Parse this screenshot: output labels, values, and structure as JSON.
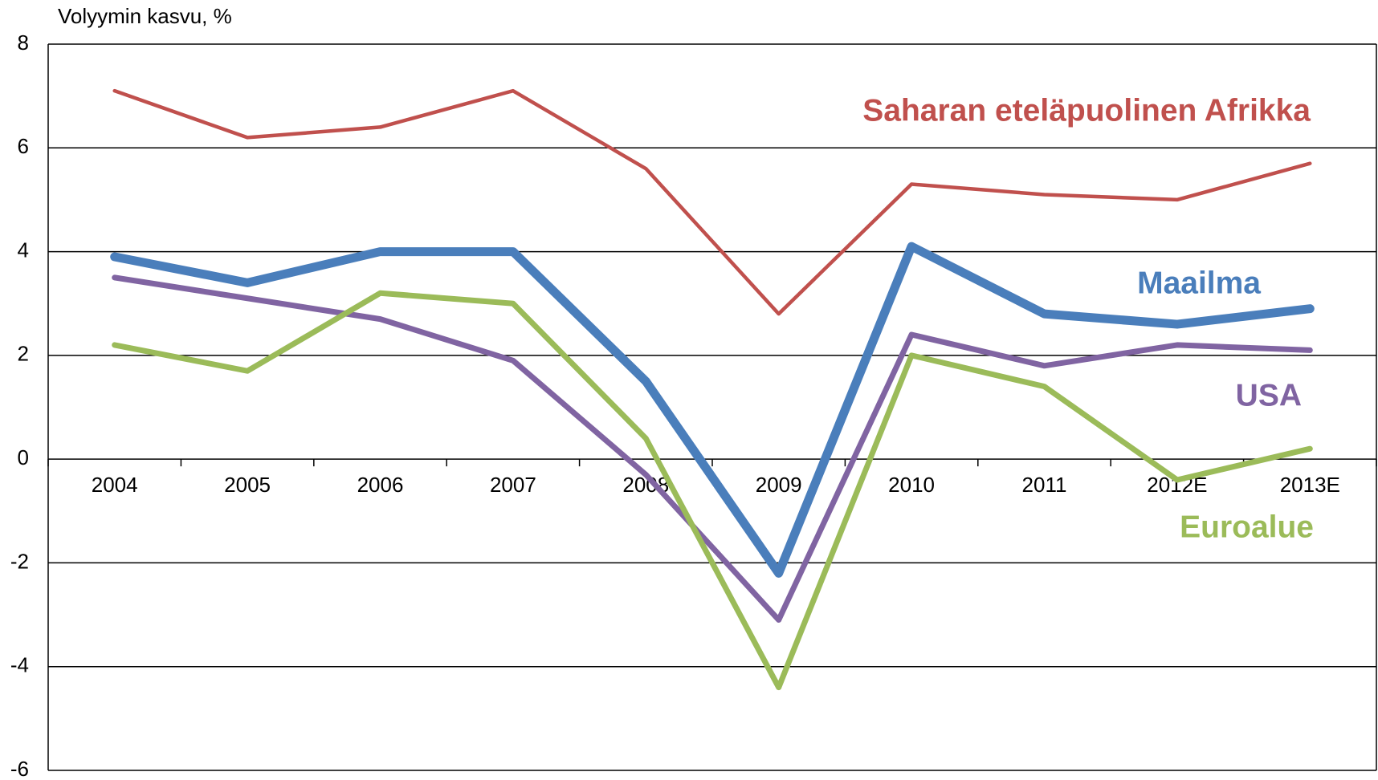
{
  "chart_data": {
    "type": "line",
    "y_axis_label": "Volyymin kasvu, %",
    "categories": [
      "2004",
      "2005",
      "2006",
      "2007",
      "2008",
      "2009",
      "2010",
      "2011",
      "2012E",
      "2013E"
    ],
    "series": [
      {
        "name": "Saharan eteläpuolinen Afrikka",
        "color": "#c0504d",
        "values": [
          7.1,
          6.2,
          6.4,
          7.1,
          5.6,
          2.8,
          5.3,
          5.1,
          5.0,
          5.7
        ]
      },
      {
        "name": "Maailma",
        "color": "#4a7ebb",
        "values": [
          3.9,
          3.4,
          4.0,
          4.0,
          1.5,
          -2.2,
          4.1,
          2.8,
          2.6,
          2.9
        ]
      },
      {
        "name": "USA",
        "color": "#8064a2",
        "values": [
          3.5,
          3.1,
          2.7,
          1.9,
          -0.3,
          -3.1,
          2.4,
          1.8,
          2.2,
          2.1
        ]
      },
      {
        "name": "Euroalue",
        "color": "#9bbb59",
        "values": [
          2.2,
          1.7,
          3.2,
          3.0,
          0.4,
          -4.4,
          2.0,
          1.4,
          -0.4,
          0.2
        ]
      }
    ],
    "ylim": [
      -6,
      8
    ],
    "yticks": [
      -6,
      -4,
      -2,
      0,
      2,
      4,
      6,
      8
    ],
    "grid": true
  }
}
